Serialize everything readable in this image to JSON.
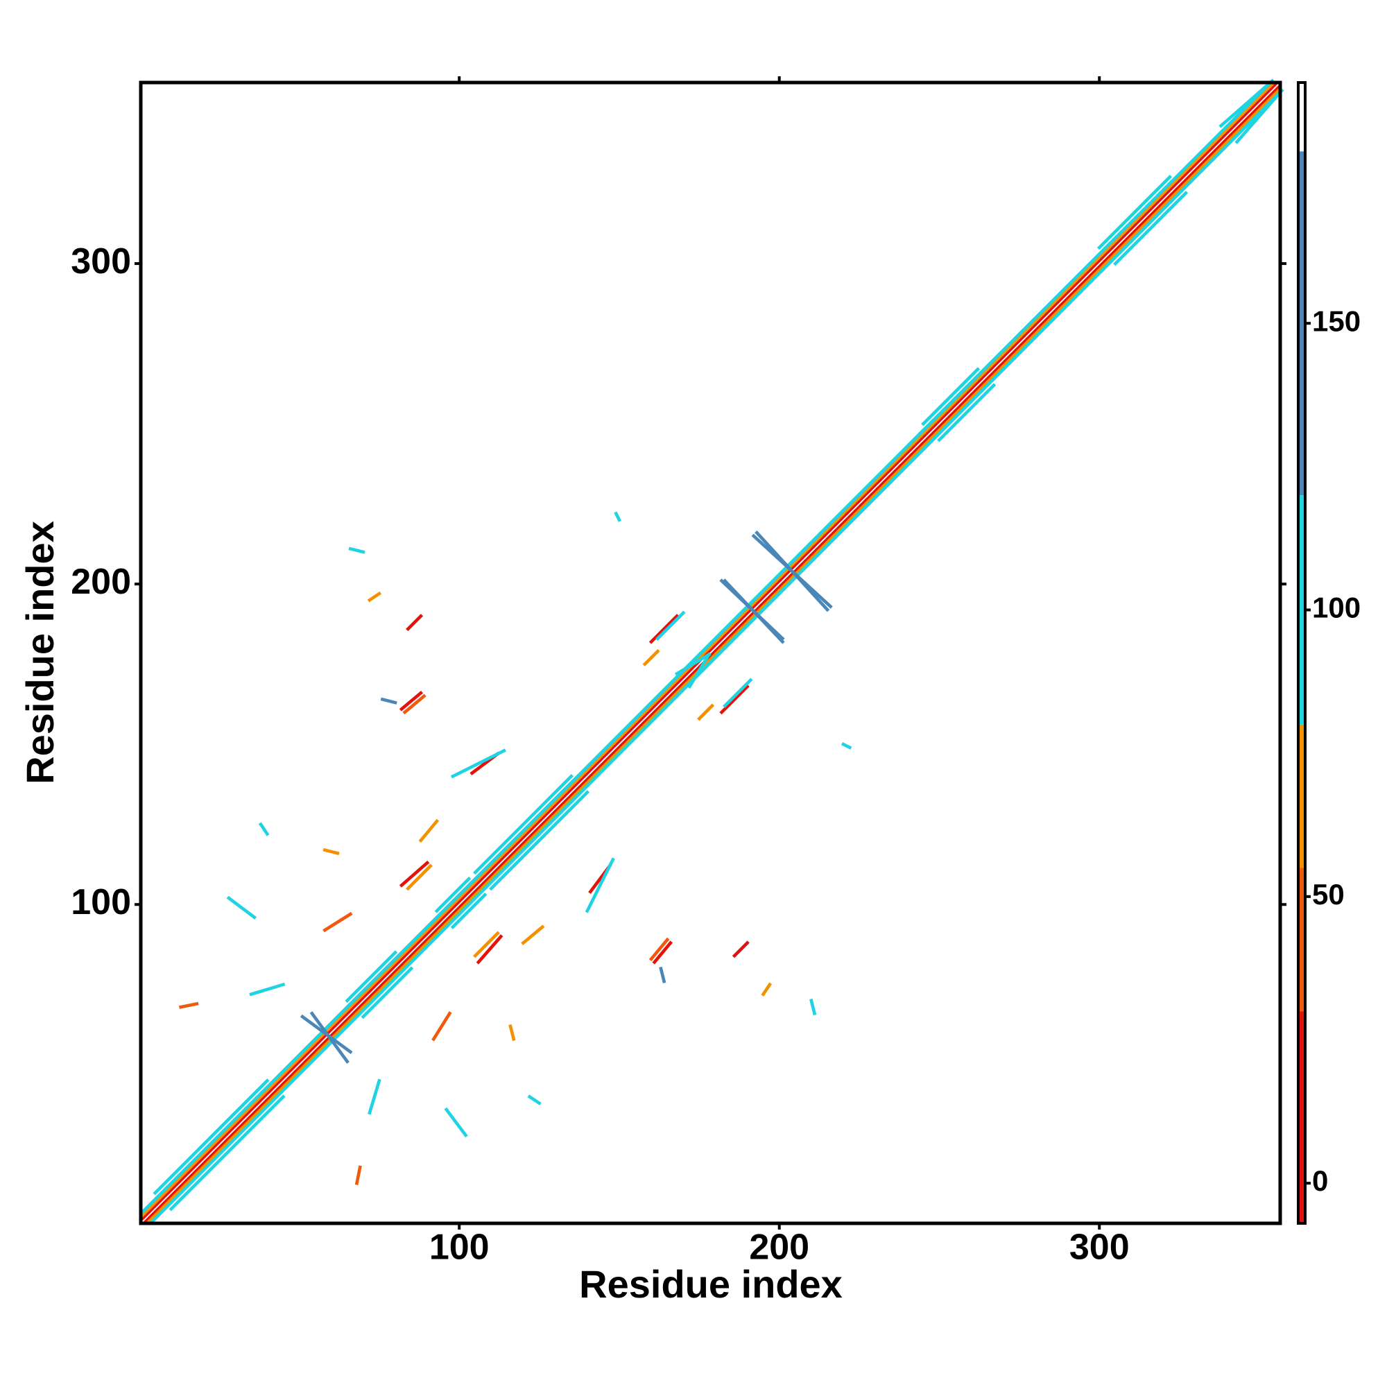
{
  "chart_data": {
    "type": "contact_map",
    "x_label": "Residue index",
    "y_label": "Residue index",
    "xlim": [
      0.5,
      356.5
    ],
    "ylim": [
      0.5,
      356.5
    ],
    "xticks": [
      100,
      200,
      300
    ],
    "yticks": [
      100,
      200,
      300
    ],
    "symmetric": true,
    "colorbar": {
      "clim": [
        -7,
        192
      ],
      "ticks": [
        0,
        50,
        100,
        150
      ],
      "bands": [
        {
          "from": -7,
          "to": 30,
          "color": "#e3120b"
        },
        {
          "from": 30,
          "to": 55,
          "color": "#ef5a0c"
        },
        {
          "from": 55,
          "to": 80,
          "color": "#f39200"
        },
        {
          "from": 80,
          "to": 120,
          "color": "#1fd3e3"
        },
        {
          "from": 120,
          "to": 180,
          "color": "#4a86b8"
        },
        {
          "from": 180,
          "to": 192,
          "color": "#ffffff"
        }
      ]
    },
    "features": [
      {
        "x": [
          1,
          355
        ],
        "y": [
          2,
          356
        ],
        "value": 5
      },
      {
        "x": [
          1,
          354
        ],
        "y": [
          3,
          356
        ],
        "value": 60
      },
      {
        "x": [
          1,
          353
        ],
        "y": [
          4,
          356
        ],
        "value": 95
      },
      {
        "x": [
          5,
          40
        ],
        "y": [
          10,
          45
        ],
        "value": 95
      },
      {
        "x": [
          105,
          135
        ],
        "y": [
          110,
          140
        ],
        "value": 95
      },
      {
        "x": [
          245,
          262
        ],
        "y": [
          250,
          267
        ],
        "value": 95
      },
      {
        "x": [
          300,
          322
        ],
        "y": [
          305,
          327
        ],
        "value": 95
      },
      {
        "x": [
          338,
          354
        ],
        "y": [
          343,
          357
        ],
        "value": 95
      },
      {
        "x": [
          65,
          80
        ],
        "y": [
          70,
          85
        ],
        "value": 95
      },
      {
        "x": [
          93,
          103
        ],
        "y": [
          98,
          108
        ],
        "value": 95
      },
      {
        "x": [
          193,
          215
        ],
        "y": [
          216,
          192
        ],
        "value": 150
      },
      {
        "x": [
          182,
          201
        ],
        "y": [
          201,
          183
        ],
        "value": 150
      },
      {
        "x": [
          54,
          65
        ],
        "y": [
          66,
          51
        ],
        "value": 150
      },
      {
        "x": [
          82,
          88
        ],
        "y": [
          161,
          166
        ],
        "value": 10
      },
      {
        "x": [
          83,
          89
        ],
        "y": [
          160,
          165
        ],
        "value": 45
      },
      {
        "x": [
          104,
          112
        ],
        "y": [
          141,
          147
        ],
        "value": 10
      },
      {
        "x": [
          98,
          114
        ],
        "y": [
          140,
          148
        ],
        "value": 95
      },
      {
        "x": [
          82,
          90
        ],
        "y": [
          106,
          113
        ],
        "value": 10
      },
      {
        "x": [
          84,
          91
        ],
        "y": [
          105,
          112
        ],
        "value": 60
      },
      {
        "x": [
          160,
          168
        ],
        "y": [
          182,
          190
        ],
        "value": 10
      },
      {
        "x": [
          162,
          170
        ],
        "y": [
          183,
          191
        ],
        "value": 95
      },
      {
        "x": [
          28,
          36
        ],
        "y": [
          102,
          96
        ],
        "value": 95
      },
      {
        "x": [
          66,
          70
        ],
        "y": [
          211,
          210
        ],
        "value": 95
      },
      {
        "x": [
          149,
          150
        ],
        "y": [
          222,
          220
        ],
        "value": 95
      },
      {
        "x": [
          76,
          80
        ],
        "y": [
          164,
          163
        ],
        "value": 150
      },
      {
        "x": [
          35,
          45
        ],
        "y": [
          72,
          75
        ],
        "value": 95
      },
      {
        "x": [
          13,
          18
        ],
        "y": [
          68,
          69
        ],
        "value": 45
      },
      {
        "x": [
          88,
          93
        ],
        "y": [
          120,
          126
        ],
        "value": 60
      },
      {
        "x": [
          58,
          66
        ],
        "y": [
          92,
          97
        ],
        "value": 45
      },
      {
        "x": [
          38,
          40
        ],
        "y": [
          125,
          122
        ],
        "value": 95
      },
      {
        "x": [
          72,
          75
        ],
        "y": [
          195,
          197
        ],
        "value": 60
      },
      {
        "x": [
          84,
          88
        ],
        "y": [
          186,
          190
        ],
        "value": 10
      },
      {
        "x": [
          58,
          62
        ],
        "y": [
          117,
          116
        ],
        "value": 60
      },
      {
        "x": [
          158,
          162
        ],
        "y": [
          175,
          179
        ],
        "value": 60
      },
      {
        "x": [
          172,
          178
        ],
        "y": [
          168,
          178
        ],
        "value": 95
      }
    ]
  }
}
